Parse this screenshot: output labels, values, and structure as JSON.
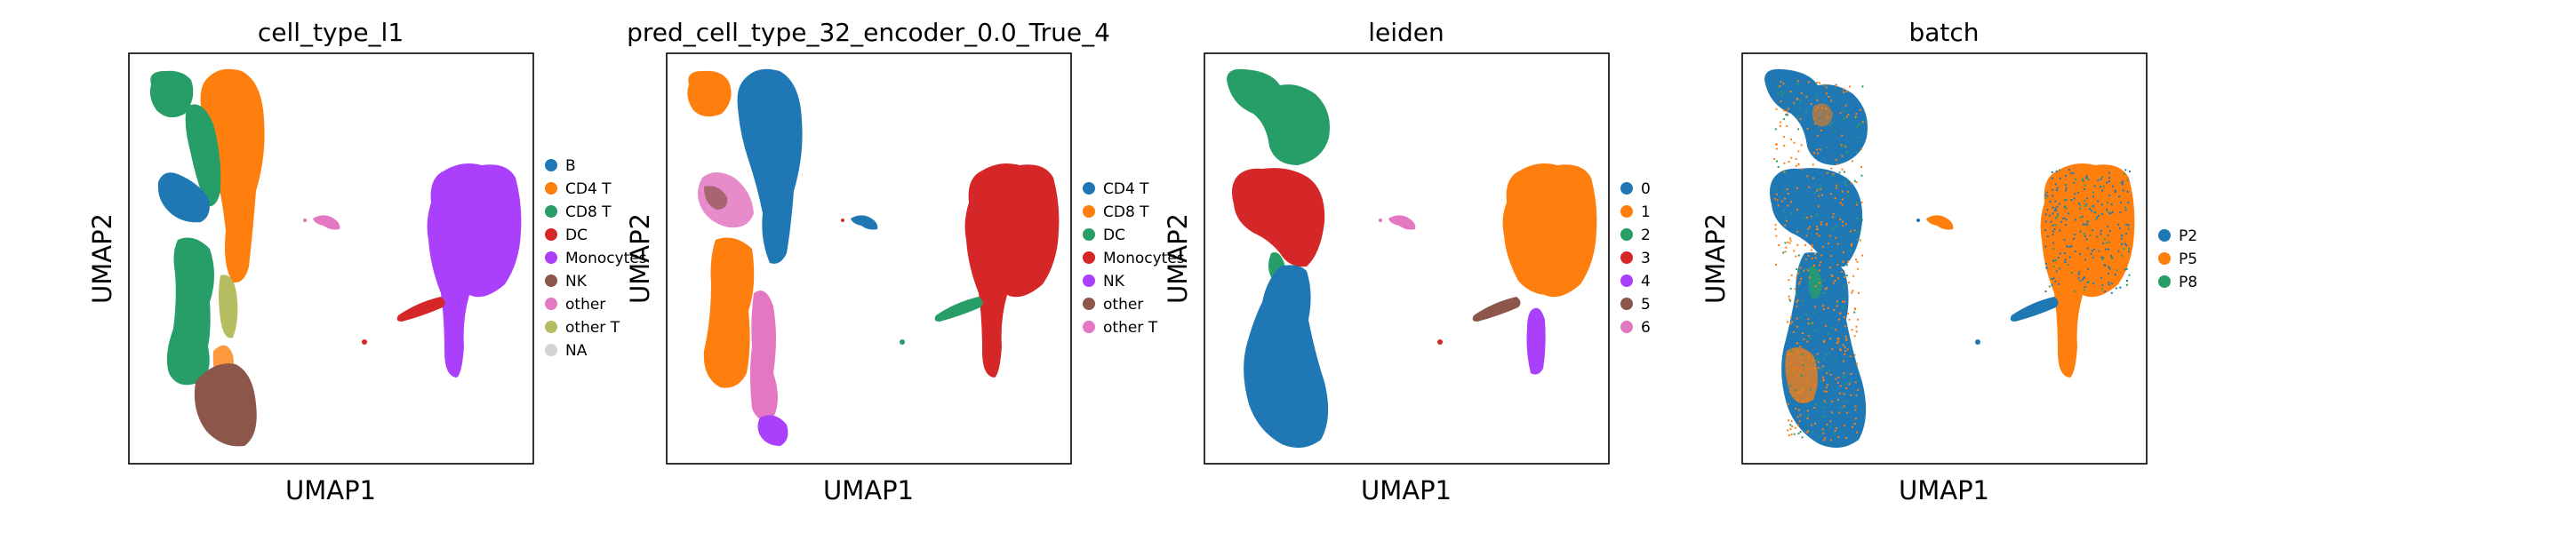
{
  "chart_data": [
    {
      "type": "scatter",
      "title": "cell_type_l1",
      "xlabel": "UMAP1",
      "ylabel": "UMAP2",
      "grid": false,
      "legend_position": "right",
      "legend": [
        {
          "label": "B",
          "color": "#1f77b4"
        },
        {
          "label": "CD4 T",
          "color": "#ff7f0e"
        },
        {
          "label": "CD8 T",
          "color": "#279e68"
        },
        {
          "label": "DC",
          "color": "#d62728"
        },
        {
          "label": "Monocytes",
          "color": "#aa40fc"
        },
        {
          "label": "NK",
          "color": "#8c564b"
        },
        {
          "label": "other",
          "color": "#e377c2"
        },
        {
          "label": "other T",
          "color": "#b5bd61"
        },
        {
          "label": "NA",
          "color": "#d3d3d3"
        }
      ]
    },
    {
      "type": "scatter",
      "title": "pred_cell_type_32_encoder_0.0_True_4",
      "xlabel": "UMAP1",
      "ylabel": "UMAP2",
      "grid": false,
      "legend_position": "right",
      "legend": [
        {
          "label": "CD4 T",
          "color": "#1f77b4"
        },
        {
          "label": "CD8 T",
          "color": "#ff7f0e"
        },
        {
          "label": "DC",
          "color": "#279e68"
        },
        {
          "label": "Monocytes",
          "color": "#d62728"
        },
        {
          "label": "NK",
          "color": "#aa40fc"
        },
        {
          "label": "other",
          "color": "#8c564b"
        },
        {
          "label": "other T",
          "color": "#e377c2"
        }
      ]
    },
    {
      "type": "scatter",
      "title": "leiden",
      "xlabel": "UMAP1",
      "ylabel": "UMAP2",
      "grid": false,
      "legend_position": "right",
      "legend": [
        {
          "label": "0",
          "color": "#1f77b4"
        },
        {
          "label": "1",
          "color": "#ff7f0e"
        },
        {
          "label": "2",
          "color": "#279e68"
        },
        {
          "label": "3",
          "color": "#d62728"
        },
        {
          "label": "4",
          "color": "#aa40fc"
        },
        {
          "label": "5",
          "color": "#8c564b"
        },
        {
          "label": "6",
          "color": "#e377c2"
        }
      ]
    },
    {
      "type": "scatter",
      "title": "batch",
      "xlabel": "UMAP1",
      "ylabel": "UMAP2",
      "grid": false,
      "legend_position": "right",
      "legend": [
        {
          "label": "P2",
          "color": "#1f77b4"
        },
        {
          "label": "P5",
          "color": "#ff7f0e"
        },
        {
          "label": "P8",
          "color": "#279e68"
        }
      ]
    }
  ]
}
